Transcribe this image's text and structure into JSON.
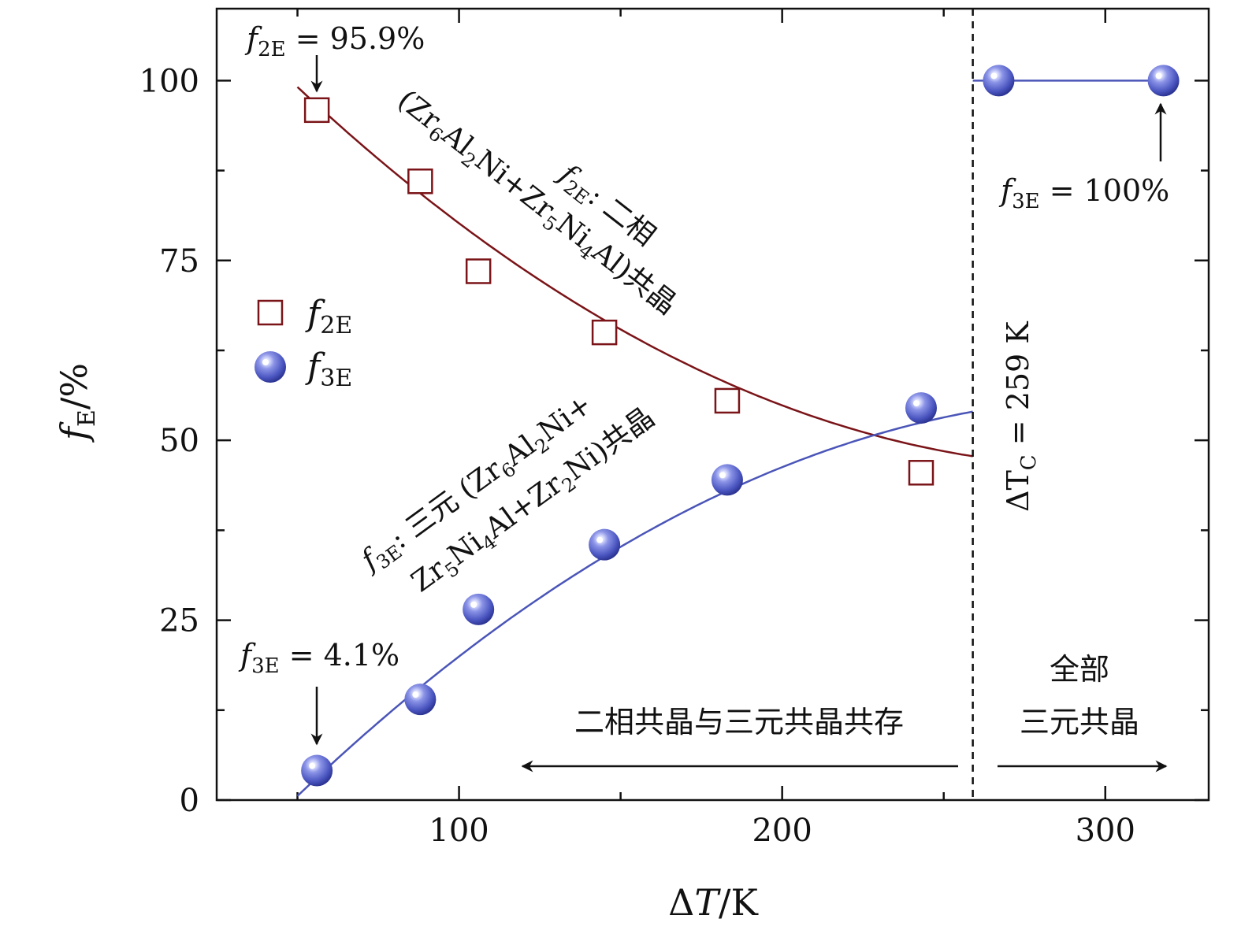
{
  "chart_data": {
    "type": "scatter",
    "xlabel": "ΔT/K",
    "ylabel": "fE/%",
    "xlim": [
      25,
      332
    ],
    "ylim": [
      0,
      110
    ],
    "x_ticks": [
      100,
      200,
      300
    ],
    "y_ticks": [
      0,
      25,
      50,
      75,
      100
    ],
    "x_tick_labels": [
      "100",
      "200",
      "300"
    ],
    "y_tick_labels": [
      "0",
      "25",
      "50",
      "75",
      "100"
    ],
    "series": [
      {
        "name": "f2E",
        "label_main": "f",
        "label_sub": "2E",
        "marker": "open-square",
        "color": "#7a1418",
        "x": [
          56,
          88,
          106,
          145,
          183,
          243
        ],
        "y": [
          95.9,
          86,
          73.5,
          65,
          55.5,
          45.5
        ],
        "fit_x_range": [
          50,
          259
        ],
        "fit_coeffs": [
          122.24,
          -0.5045,
          0.000838
        ]
      },
      {
        "name": "f3E",
        "label_main": "f",
        "label_sub": "3E",
        "marker": "sphere",
        "color": "#4a55b8",
        "x": [
          56,
          88,
          106,
          145,
          183,
          243,
          267,
          318
        ],
        "y": [
          4.1,
          14,
          26.5,
          35.5,
          44.5,
          54.5,
          100,
          100
        ],
        "fit_x_range": [
          50,
          259
        ],
        "fit_coeffs": [
          -22.99,
          0.5127,
          -0.000832
        ],
        "extra_segment": {
          "x": [
            259,
            318
          ],
          "y": [
            100,
            100
          ]
        }
      }
    ],
    "vline": {
      "x": 259,
      "style": "dashed"
    },
    "annotations": {
      "f2e_start": {
        "main": "f",
        "sub": "2E",
        "rest": " = 95.9%"
      },
      "f3e_start": {
        "main": "f",
        "sub": "3E",
        "rest": " = 4.1%"
      },
      "f3e_end": {
        "main": "f",
        "sub": "3E",
        "rest": " = 100%"
      },
      "f2e_desc_line1": {
        "main": "f",
        "sub": "2E",
        "rest": ": 二相"
      },
      "f2e_desc_line2": {
        "p1": "(Zr",
        "s1": "6",
        "p2": "Al",
        "s2": "2",
        "p3": "Ni+Zr",
        "s3": "5",
        "p4": "Ni",
        "s4": "4",
        "p5": "Al)共晶"
      },
      "f3e_desc_line1": {
        "main": "f",
        "sub": "3E",
        "p1": ": 三元 (Zr",
        "s1": "6",
        "p2": "Al",
        "s2": "2",
        "p3": "Ni+"
      },
      "f3e_desc_line2": {
        "p1": "Zr",
        "s1": "5",
        "p2": "Ni",
        "s2": "4",
        "p3": "Al+Zr",
        "s3": "2",
        "p4": "Ni)共晶"
      },
      "delta_tc": {
        "pre": "ΔT",
        "sub": "C",
        "rest": " = 259 K"
      },
      "coexist_region": "二相共晶与三元共晶共存",
      "all_ternary_line1": "全部",
      "all_ternary_line2": "三元共晶"
    },
    "legend": {
      "placement": "left-middle",
      "entries": [
        "f2E",
        "f3E"
      ]
    }
  }
}
